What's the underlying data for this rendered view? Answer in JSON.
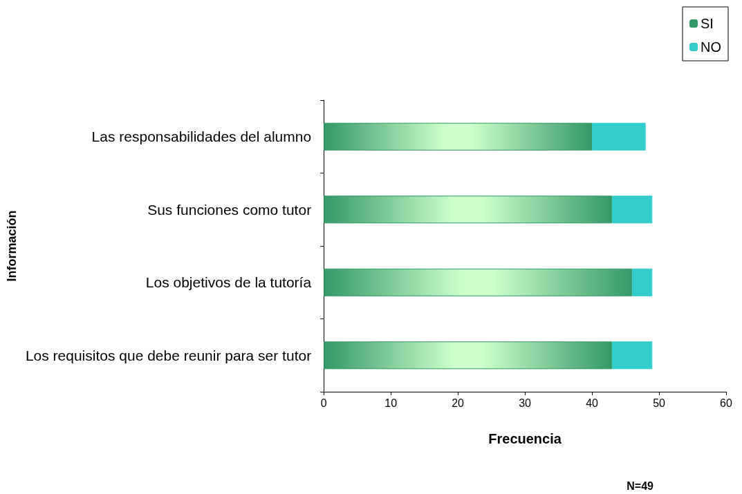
{
  "chart_data": {
    "type": "bar",
    "orientation": "horizontal",
    "stacked": true,
    "categories": [
      "Las responsabilidades del alumno",
      "Sus funciones como tutor",
      "Los objetivos de la tutoría",
      "Los requisitos que debe reunir para ser tutor"
    ],
    "series": [
      {
        "name": "SI",
        "color": "#339966",
        "values": [
          40,
          43,
          46,
          43
        ]
      },
      {
        "name": "NO",
        "color": "#33cccc",
        "values": [
          8,
          6,
          3,
          6
        ]
      }
    ],
    "xlim": [
      0,
      60
    ],
    "xticks": [
      0,
      10,
      20,
      30,
      40,
      50,
      60
    ],
    "xlabel": "Frecuencia",
    "ylabel": "Información",
    "legend": "top right",
    "grid": false,
    "annotations": [
      "N=49"
    ]
  }
}
